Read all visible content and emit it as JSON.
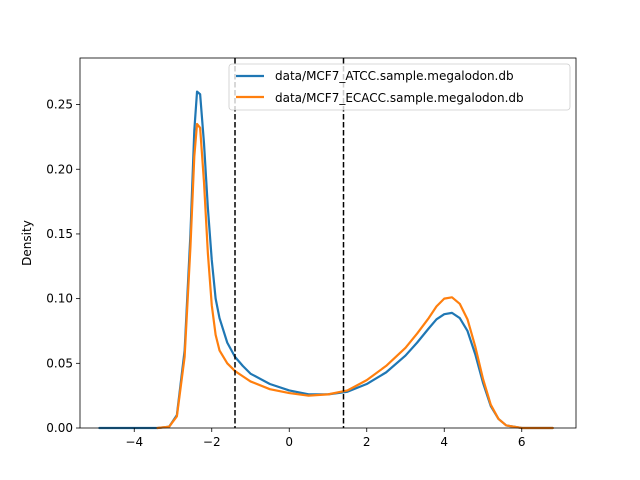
{
  "chart_data": {
    "type": "line",
    "title": "",
    "xlabel": "",
    "ylabel": "Density",
    "xlim": [
      -5.4,
      7.4
    ],
    "ylim": [
      0.0,
      0.286
    ],
    "xticks": [
      -4,
      -2,
      0,
      2,
      4,
      6
    ],
    "xtick_labels": [
      "−4",
      "−2",
      "0",
      "2",
      "4",
      "6"
    ],
    "yticks": [
      0.0,
      0.05,
      0.1,
      0.15,
      0.2,
      0.25
    ],
    "ytick_labels": [
      "0.00",
      "0.05",
      "0.10",
      "0.15",
      "0.20",
      "0.25"
    ],
    "grid": false,
    "legend_position": "upper right",
    "vlines": [
      -1.4,
      1.4
    ],
    "vline_style": "dashed black",
    "series": [
      {
        "name": "data/MCF7_ATCC.sample.megalodon.db",
        "color": "#1f77b4",
        "x": [
          -4.9,
          -3.4,
          -3.1,
          -2.9,
          -2.7,
          -2.55,
          -2.45,
          -2.38,
          -2.3,
          -2.2,
          -2.1,
          -2.0,
          -1.9,
          -1.8,
          -1.6,
          -1.4,
          -1.2,
          -1.0,
          -0.5,
          0.0,
          0.5,
          1.0,
          1.5,
          2.0,
          2.5,
          3.0,
          3.3,
          3.6,
          3.8,
          4.0,
          4.2,
          4.4,
          4.6,
          4.8,
          5.0,
          5.2,
          5.4,
          5.6,
          5.8,
          6.0,
          6.3,
          6.8
        ],
        "y": [
          0.0,
          0.0,
          0.001,
          0.01,
          0.06,
          0.15,
          0.23,
          0.26,
          0.258,
          0.22,
          0.17,
          0.13,
          0.1,
          0.085,
          0.066,
          0.055,
          0.048,
          0.042,
          0.034,
          0.029,
          0.026,
          0.026,
          0.028,
          0.034,
          0.043,
          0.056,
          0.066,
          0.077,
          0.084,
          0.088,
          0.089,
          0.085,
          0.075,
          0.057,
          0.035,
          0.017,
          0.007,
          0.002,
          0.001,
          0.0,
          0.0,
          0.0
        ]
      },
      {
        "name": "data/MCF7_ECACC.sample.megalodon.db",
        "color": "#ff7f0e",
        "x": [
          -3.4,
          -3.1,
          -2.9,
          -2.7,
          -2.55,
          -2.45,
          -2.38,
          -2.3,
          -2.2,
          -2.1,
          -2.0,
          -1.9,
          -1.8,
          -1.6,
          -1.4,
          -1.2,
          -1.0,
          -0.5,
          0.0,
          0.5,
          1.0,
          1.5,
          2.0,
          2.5,
          3.0,
          3.3,
          3.6,
          3.8,
          4.0,
          4.2,
          4.4,
          4.6,
          4.8,
          5.0,
          5.2,
          5.4,
          5.6,
          5.8,
          6.0,
          6.3,
          6.8
        ],
        "y": [
          0.0,
          0.001,
          0.009,
          0.055,
          0.14,
          0.21,
          0.235,
          0.232,
          0.19,
          0.135,
          0.095,
          0.072,
          0.06,
          0.05,
          0.044,
          0.04,
          0.036,
          0.03,
          0.027,
          0.025,
          0.026,
          0.029,
          0.037,
          0.048,
          0.062,
          0.073,
          0.085,
          0.094,
          0.1,
          0.101,
          0.096,
          0.084,
          0.063,
          0.038,
          0.018,
          0.007,
          0.002,
          0.001,
          0.0,
          0.0,
          0.0
        ]
      }
    ]
  }
}
